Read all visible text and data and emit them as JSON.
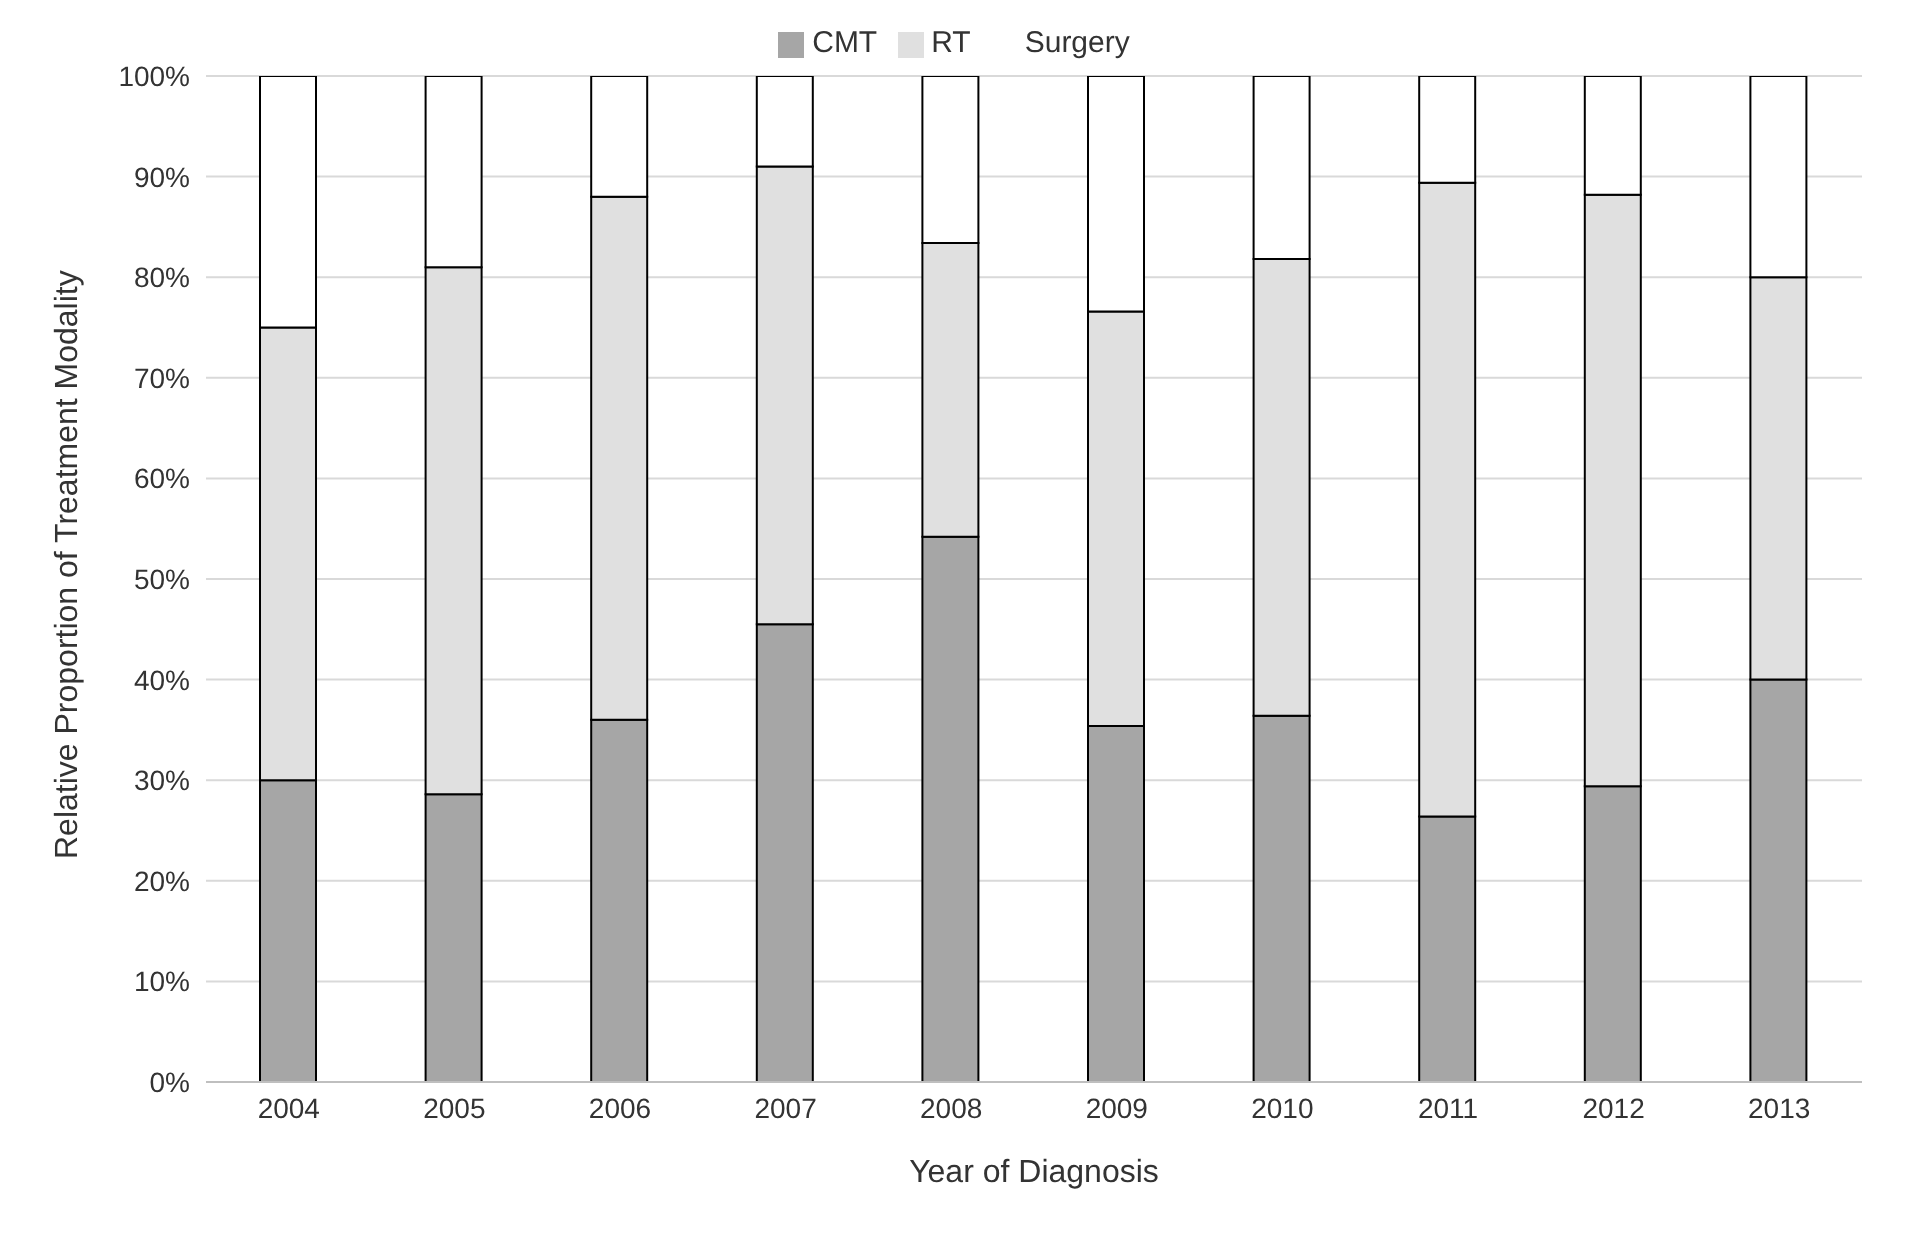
{
  "chart_data": {
    "type": "bar",
    "stacked": true,
    "xlabel": "Year of Diagnosis",
    "ylabel": "Relative Proportion of Treatment Modality",
    "categories": [
      "2004",
      "2005",
      "2006",
      "2007",
      "2008",
      "2009",
      "2010",
      "2011",
      "2012",
      "2013"
    ],
    "series": [
      {
        "name": "CMT",
        "color": "#a6a6a6",
        "values": [
          30,
          28.6,
          36,
          45.5,
          54.2,
          35.4,
          36.4,
          26.4,
          29.4,
          40
        ]
      },
      {
        "name": "RT",
        "color": "#e0e0e0",
        "values": [
          45,
          52.4,
          52,
          45.5,
          29.2,
          41.2,
          45.4,
          63,
          58.8,
          40
        ]
      },
      {
        "name": "Surgery",
        "color": "#ffffff",
        "values": [
          25,
          19,
          12,
          9,
          16.6,
          23.4,
          18.2,
          10.6,
          11.8,
          20
        ]
      }
    ],
    "ylim": [
      0,
      100
    ],
    "yticks": [
      {
        "value": 0,
        "label": "0%"
      },
      {
        "value": 10,
        "label": "10%"
      },
      {
        "value": 20,
        "label": "20%"
      },
      {
        "value": 30,
        "label": "30%"
      },
      {
        "value": 40,
        "label": "40%"
      },
      {
        "value": 50,
        "label": "50%"
      },
      {
        "value": 60,
        "label": "60%"
      },
      {
        "value": 70,
        "label": "70%"
      },
      {
        "value": 80,
        "label": "80%"
      },
      {
        "value": 90,
        "label": "90%"
      },
      {
        "value": 100,
        "label": "100%"
      }
    ],
    "grid": "y",
    "legend": "top"
  }
}
